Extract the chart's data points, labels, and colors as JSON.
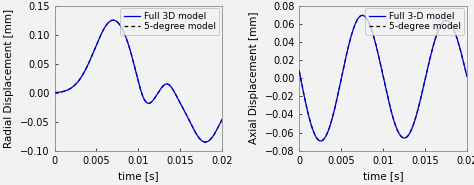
{
  "left": {
    "ylabel": "Radial Displacement [mm]",
    "xlabel": "time [s]",
    "xlim": [
      0,
      0.02
    ],
    "ylim": [
      -0.1,
      0.15
    ],
    "yticks": [
      -0.1,
      -0.05,
      0,
      0.05,
      0.1,
      0.15
    ],
    "xticks": [
      0,
      0.005,
      0.01,
      0.015,
      0.02
    ],
    "legend1": "Full 3D model",
    "legend2": "5-degree model"
  },
  "right": {
    "ylabel": "Axial Displacement [mm]",
    "xlabel": "time [s]",
    "xlim": [
      0,
      0.02
    ],
    "ylim": [
      -0.08,
      0.08
    ],
    "yticks": [
      -0.08,
      -0.06,
      -0.04,
      -0.02,
      0,
      0.02,
      0.04,
      0.06,
      0.08
    ],
    "xticks": [
      0,
      0.005,
      0.01,
      0.015,
      0.02
    ],
    "legend1": "Full 3-D model",
    "legend2": "5-degree model"
  },
  "line_color_solid": "#0000CC",
  "line_color_dashed": "#000000",
  "bg_color": "#f2f2f2",
  "tick_fontsize": 7,
  "label_fontsize": 7.5,
  "legend_fontsize": 6.5
}
